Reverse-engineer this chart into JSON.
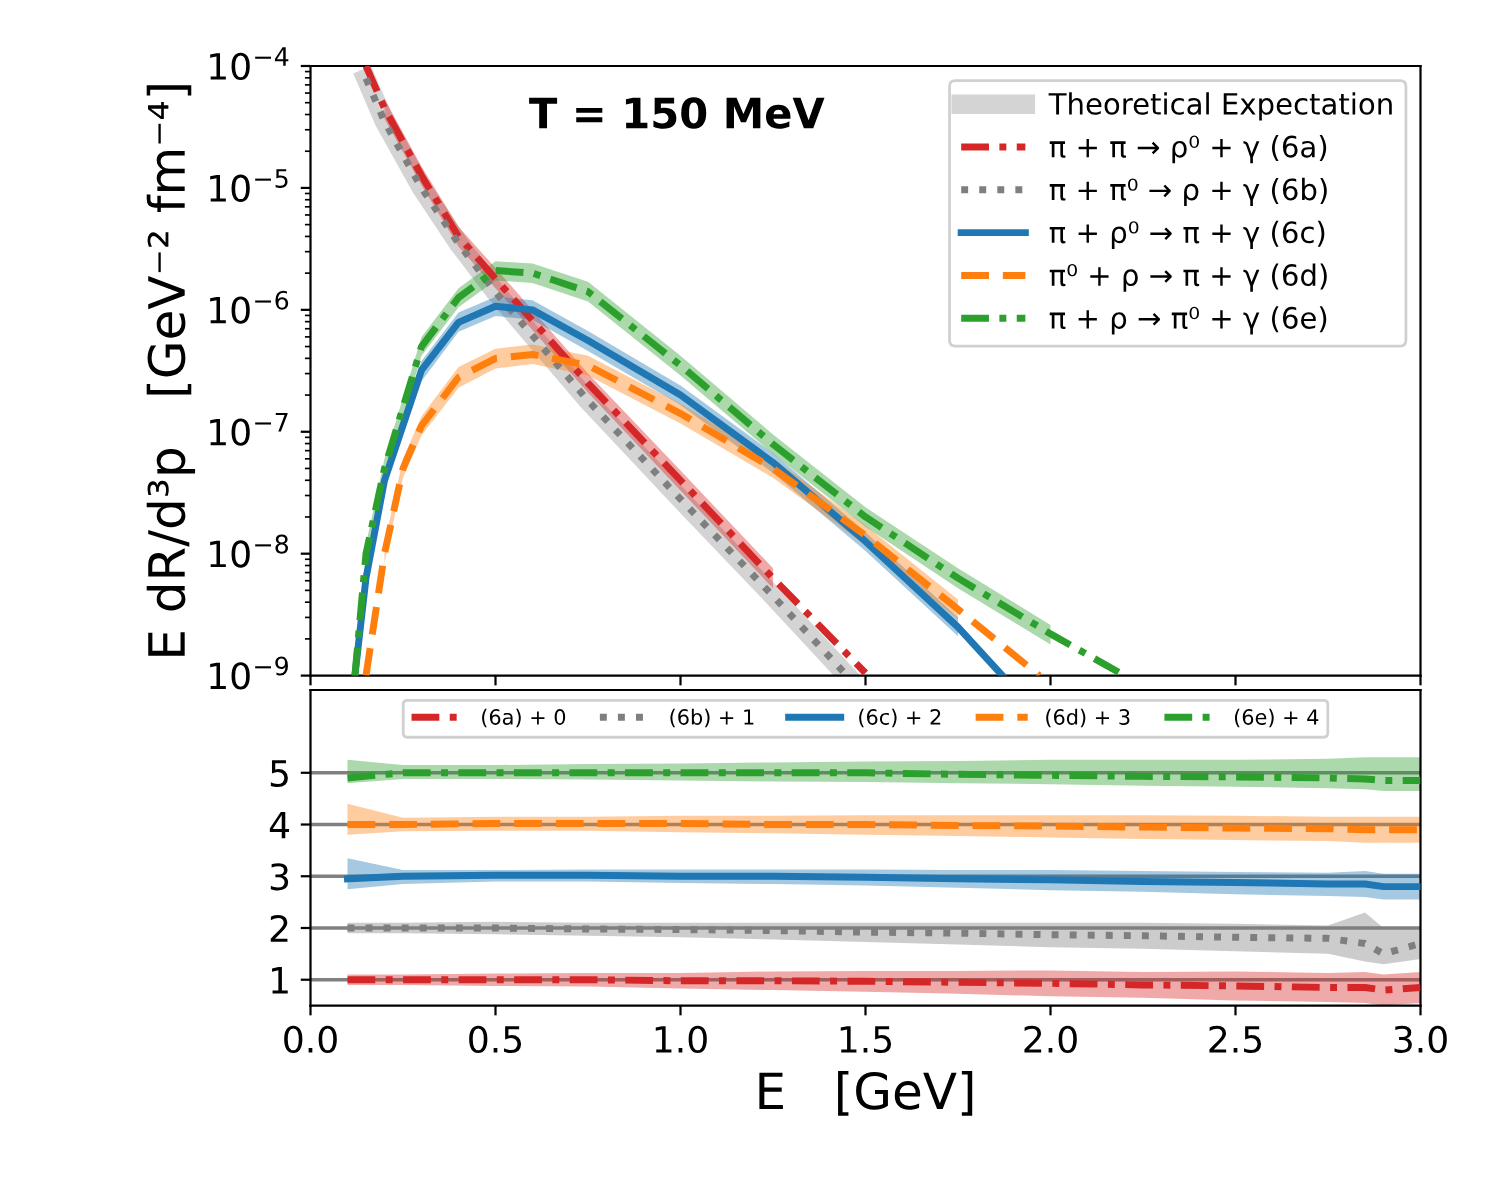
{
  "chart_data": [
    {
      "type": "line",
      "ylabel": "E dR/d³p   [GeV⁻² fm⁻⁴]",
      "log": "y",
      "xlim": [
        0.0,
        3.0
      ],
      "ylim": [
        1e-09,
        0.0001
      ],
      "xticks": [
        {
          "value": 0.0,
          "label": null
        },
        {
          "value": 0.5,
          "label": null
        },
        {
          "value": 1.0,
          "label": null
        },
        {
          "value": 1.5,
          "label": null
        },
        {
          "value": 2.0,
          "label": null
        },
        {
          "value": 2.5,
          "label": null
        },
        {
          "value": 3.0,
          "label": null
        }
      ],
      "yticks": [
        {
          "value": 1e-09,
          "label": "10$^{−9}$"
        },
        {
          "value": 1e-08,
          "label": "10$^{−8}$"
        },
        {
          "value": 1e-07,
          "label": "10$^{−7}$"
        },
        {
          "value": 1e-06,
          "label": "10$^{−6}$"
        },
        {
          "value": 1e-05,
          "label": "10$^{−5}$"
        },
        {
          "value": 0.0001,
          "label": "10$^{−4}$"
        }
      ],
      "tick_labels": "y",
      "grid": false,
      "legend": "top right",
      "annotations": [
        "T = 150 MeV"
      ],
      "series": [
        {
          "name": "Theoretical Expectation",
          "color": "#b0b0b0",
          "x": [
            0.15,
            0.2,
            0.3,
            0.4,
            0.5,
            0.75,
            1.0,
            1.25,
            1.45
          ],
          "values": [
            7.9e-05,
            3.5e-05,
            1e-05,
            3.5e-06,
            1.4e-06,
            1.8e-07,
            2.8e-08,
            4.5e-09,
            1e-09
          ]
        },
        {
          "name": "π + π → ρ⁰ + γ (6a)",
          "color": "#d62728",
          "line_style": "dashdot",
          "x": [
            0.15,
            0.2,
            0.3,
            0.4,
            0.5,
            0.75,
            1.0,
            1.25,
            1.5
          ],
          "values": [
            0.0001,
            4.5e-05,
            1.26e-05,
            4e-06,
            1.8e-06,
            2.5e-07,
            4e-08,
            6.3e-09,
            1.05e-09
          ],
          "lower": [
            null,
            3.7e-05,
            1.05e-05,
            3.3e-06,
            1.5e-06,
            2.1e-07,
            3.3e-08,
            5.2e-09,
            null
          ],
          "upper": [
            null,
            5.4e-05,
            1.5e-05,
            4.8e-06,
            2.2e-06,
            3e-07,
            4.8e-08,
            7.6e-09,
            null
          ]
        },
        {
          "name": "π + π⁰ → ρ + γ (6b)",
          "color": "#7f7f7f",
          "line_style": "dotted",
          "x": [
            0.15,
            0.2,
            0.3,
            0.4,
            0.5,
            0.75,
            1.0,
            1.25,
            1.45
          ],
          "values": [
            7.9e-05,
            3.5e-05,
            1e-05,
            3.5e-06,
            1.4e-06,
            1.8e-07,
            2.8e-08,
            4.5e-09,
            1e-09
          ]
        },
        {
          "name": "π + ρ⁰ → π + γ (6c)",
          "color": "#1f77b4",
          "line_style": "solid",
          "x": [
            0.12,
            0.15,
            0.2,
            0.3,
            0.4,
            0.5,
            0.6,
            0.75,
            1.0,
            1.25,
            1.5,
            1.75,
            1.87
          ],
          "values": [
            1e-09,
            6.3e-09,
            4e-08,
            3.2e-07,
            7.9e-07,
            1.07e-06,
            1e-06,
            5.6e-07,
            2e-07,
            5.6e-08,
            1.26e-08,
            2.5e-09,
            1e-09
          ],
          "lower": [
            null,
            5.2e-09,
            3.3e-08,
            2.6e-07,
            6.6e-07,
            8.9e-07,
            8.3e-07,
            4.6e-07,
            1.66e-07,
            4.6e-08,
            1.05e-08,
            2.1e-09,
            null
          ],
          "upper": [
            null,
            7.6e-09,
            4.8e-08,
            3.8e-07,
            9.5e-07,
            1.28e-06,
            1.2e-06,
            6.7e-07,
            2.4e-07,
            6.7e-08,
            1.5e-08,
            3e-09,
            null
          ]
        },
        {
          "name": "π⁰ + ρ → π + γ (6d)",
          "color": "#ff7f0e",
          "line_style": "dashed",
          "x": [
            0.15,
            0.2,
            0.25,
            0.3,
            0.4,
            0.5,
            0.6,
            0.75,
            1.0,
            1.25,
            1.5,
            1.75,
            1.97
          ],
          "values": [
            1e-09,
            1e-08,
            5e-08,
            1.12e-07,
            2.8e-07,
            4e-07,
            4.3e-07,
            3.5e-07,
            1.41e-07,
            5e-08,
            1.41e-08,
            3.5e-09,
            1e-09
          ],
          "lower": [
            null,
            8.3e-09,
            4.2e-08,
            9.3e-08,
            2.3e-07,
            3.3e-07,
            3.6e-07,
            2.9e-07,
            1.17e-07,
            4.2e-08,
            1.17e-08,
            2.9e-09,
            null
          ],
          "upper": [
            null,
            1.2e-08,
            6e-08,
            1.34e-07,
            3.4e-07,
            4.8e-07,
            5.2e-07,
            4.2e-07,
            1.7e-07,
            6e-08,
            1.7e-08,
            4.2e-09,
            null
          ]
        },
        {
          "name": "π + ρ → π⁰ + γ (6e)",
          "color": "#2ca02c",
          "line_style": "dashdot",
          "x": [
            0.12,
            0.15,
            0.2,
            0.3,
            0.4,
            0.5,
            0.6,
            0.75,
            1.0,
            1.25,
            1.5,
            1.75,
            2.0,
            2.2
          ],
          "values": [
            1e-09,
            1e-08,
            5e-08,
            5e-07,
            1.26e-06,
            2.1e-06,
            2e-06,
            1.41e-06,
            3.5e-07,
            7.9e-08,
            2e-08,
            6.3e-09,
            2.2e-09,
            1e-09
          ],
          "lower": [
            null,
            8.3e-09,
            4.2e-08,
            4.2e-07,
            1.05e-06,
            1.74e-06,
            1.66e-06,
            1.17e-06,
            2.9e-07,
            6.6e-08,
            1.66e-08,
            5.2e-09,
            1.8e-09,
            null
          ],
          "upper": [
            null,
            1.2e-08,
            6e-08,
            6e-07,
            1.5e-06,
            2.5e-06,
            2.4e-06,
            1.7e-06,
            4.2e-07,
            9.5e-08,
            2.4e-08,
            7.6e-09,
            2.6e-09,
            null
          ]
        }
      ]
    },
    {
      "type": "line",
      "xlabel": "E   [GeV]",
      "xlim": [
        0.0,
        3.0
      ],
      "ylim": [
        0.5,
        6.6
      ],
      "xticks": [
        {
          "value": 0.0,
          "label": "0.0"
        },
        {
          "value": 0.5,
          "label": "0.5"
        },
        {
          "value": 1.0,
          "label": "1.0"
        },
        {
          "value": 1.5,
          "label": "1.5"
        },
        {
          "value": 2.0,
          "label": "2.0"
        },
        {
          "value": 2.5,
          "label": "2.5"
        },
        {
          "value": 3.0,
          "label": "3.0"
        }
      ],
      "yticks": [
        1,
        2,
        3,
        4,
        5
      ],
      "grid": false,
      "legend": "top",
      "ref_lines": [
        {
          "axis": "y",
          "value": 1,
          "color": "#808080"
        },
        {
          "axis": "y",
          "value": 2,
          "color": "#808080"
        },
        {
          "axis": "y",
          "value": 3,
          "color": "#808080"
        },
        {
          "axis": "y",
          "value": 4,
          "color": "#808080"
        },
        {
          "axis": "y",
          "value": 5,
          "color": "#808080"
        }
      ],
      "x": [
        0.1,
        0.25,
        0.5,
        0.75,
        1.0,
        1.25,
        1.5,
        1.75,
        2.0,
        2.25,
        2.5,
        2.75,
        2.85,
        2.9,
        3.0
      ],
      "series": [
        {
          "name": "(6a) + 0",
          "color": "#d62728",
          "line_style": "dashdot",
          "values": [
            1.0,
            1.0,
            1.0,
            1.0,
            0.98,
            0.98,
            0.97,
            0.95,
            0.93,
            0.9,
            0.88,
            0.85,
            0.85,
            0.8,
            0.85
          ],
          "lower": [
            0.9,
            0.9,
            0.88,
            0.87,
            0.83,
            0.8,
            0.77,
            0.73,
            0.68,
            0.65,
            0.6,
            0.57,
            0.55,
            0.5,
            0.55
          ],
          "upper": [
            1.1,
            1.1,
            1.12,
            1.13,
            1.13,
            1.16,
            1.17,
            1.17,
            1.18,
            1.15,
            1.16,
            1.13,
            1.15,
            1.1,
            1.15
          ]
        },
        {
          "name": "(6b) + 1",
          "color": "#7f7f7f",
          "line_style": "dotted",
          "values": [
            2.0,
            2.0,
            2.0,
            1.98,
            1.97,
            1.95,
            1.92,
            1.9,
            1.87,
            1.85,
            1.82,
            1.8,
            1.7,
            1.5,
            1.7
          ],
          "lower": [
            1.9,
            1.9,
            1.88,
            1.85,
            1.82,
            1.78,
            1.73,
            1.68,
            1.63,
            1.6,
            1.55,
            1.5,
            1.35,
            1.3,
            1.4
          ],
          "upper": [
            2.1,
            2.1,
            2.12,
            2.1,
            2.1,
            2.1,
            2.1,
            2.1,
            2.1,
            2.1,
            2.08,
            2.05,
            2.3,
            2.0,
            2.0
          ]
        },
        {
          "name": "(6c) + 2",
          "color": "#1f77b4",
          "line_style": "solid",
          "values": [
            2.95,
            3.0,
            3.02,
            3.02,
            3.0,
            3.0,
            2.98,
            2.95,
            2.93,
            2.9,
            2.88,
            2.85,
            2.85,
            2.8,
            2.8
          ],
          "lower": [
            2.75,
            2.85,
            2.9,
            2.9,
            2.87,
            2.85,
            2.82,
            2.78,
            2.73,
            2.7,
            2.65,
            2.62,
            2.6,
            2.55,
            2.55
          ],
          "upper": [
            3.35,
            3.12,
            3.12,
            3.13,
            3.13,
            3.13,
            3.13,
            3.12,
            3.12,
            3.1,
            3.08,
            3.07,
            3.1,
            3.05,
            3.05
          ]
        },
        {
          "name": "(6d) + 3",
          "color": "#ff7f0e",
          "line_style": "dashed",
          "values": [
            4.0,
            4.0,
            4.02,
            4.02,
            4.02,
            4.0,
            4.0,
            3.98,
            3.97,
            3.95,
            3.93,
            3.92,
            3.9,
            3.9,
            3.9
          ],
          "lower": [
            3.8,
            3.87,
            3.88,
            3.88,
            3.85,
            3.83,
            3.8,
            3.78,
            3.75,
            3.72,
            3.7,
            3.68,
            3.65,
            3.65,
            3.65
          ],
          "upper": [
            4.4,
            4.13,
            4.15,
            4.15,
            4.17,
            4.17,
            4.18,
            4.18,
            4.18,
            4.18,
            4.17,
            4.15,
            4.15,
            4.15,
            4.15
          ]
        },
        {
          "name": "(6e) + 4",
          "color": "#2ca02c",
          "line_style": "dashdot",
          "values": [
            4.9,
            5.0,
            5.0,
            5.0,
            5.0,
            5.0,
            5.0,
            4.97,
            4.95,
            4.93,
            4.92,
            4.9,
            4.88,
            4.85,
            4.85
          ],
          "lower": [
            4.8,
            4.88,
            4.88,
            4.87,
            4.85,
            4.83,
            4.82,
            4.8,
            4.78,
            4.75,
            4.73,
            4.7,
            4.68,
            4.65,
            4.65
          ],
          "upper": [
            5.25,
            5.15,
            5.15,
            5.17,
            5.18,
            5.2,
            5.22,
            5.23,
            5.25,
            5.25,
            5.25,
            5.27,
            5.3,
            5.3,
            5.3
          ]
        }
      ]
    }
  ]
}
